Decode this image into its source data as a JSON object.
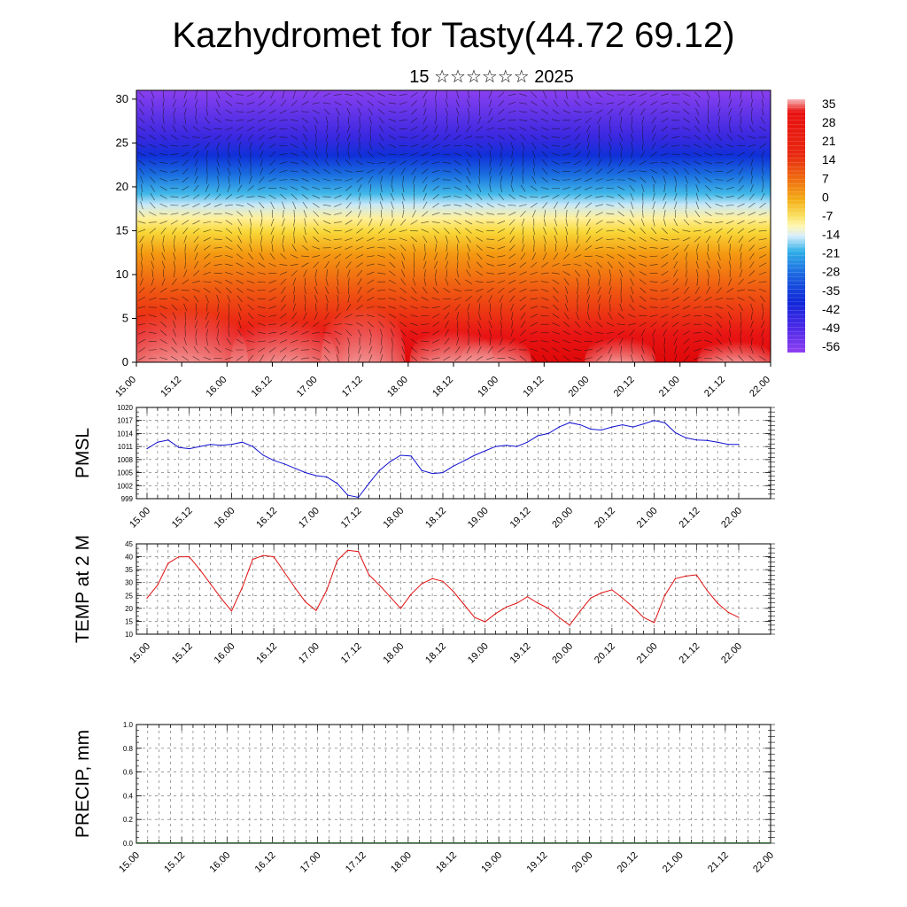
{
  "title": "Kazhydromet for Tasty(44.72 69.12)",
  "subtitle": "15 ☆☆☆☆☆☆ 2025",
  "chart_data": [
    {
      "type": "heatmap",
      "name": "cross-section",
      "title": "",
      "ylim": [
        0,
        31
      ],
      "yticks": [
        "0",
        "5",
        "10",
        "15",
        "20",
        "25",
        "30"
      ],
      "xticks": [
        "15.00",
        "15.12",
        "16.00",
        "16.12",
        "17.00",
        "17.12",
        "18.00",
        "18.12",
        "19.00",
        "19.12",
        "20.00",
        "20.12",
        "21.00",
        "21.12",
        "22.00"
      ],
      "colorbar_labels": [
        "35",
        "28",
        "21",
        "14",
        "7",
        "0",
        "-7",
        "-14",
        "-21",
        "-28",
        "-35",
        "-42",
        "-49",
        "-56"
      ],
      "colorbar_colors": [
        "#f7a8a8",
        "#e81414",
        "#e01a1a",
        "#f05a10",
        "#f4a010",
        "#f8e040",
        "#fff4a0",
        "#e0f0ff",
        "#30b0e8",
        "#2080e0",
        "#1040e0",
        "#3020e0",
        "#6030f0",
        "#9040f0"
      ],
      "grid": false
    },
    {
      "type": "line",
      "ylabel": "PMSL",
      "ylim": [
        999,
        1020
      ],
      "yticks": [
        "999",
        "1002",
        "1005",
        "1008",
        "1011",
        "1014",
        "1017",
        "1020"
      ],
      "xticks": [
        "15.00",
        "15.12",
        "16.00",
        "16.12",
        "17.00",
        "17.12",
        "18.00",
        "18.12",
        "19.00",
        "19.12",
        "20.00",
        "20.12",
        "21.00",
        "21.12",
        "22.00"
      ],
      "color": "#1010d0",
      "grid": true,
      "x": [
        0,
        3,
        6,
        9,
        12,
        15,
        18,
        21,
        24,
        27,
        30,
        33,
        36,
        39,
        42,
        45,
        48,
        51,
        54,
        57,
        60,
        63,
        66,
        69,
        72,
        75,
        78,
        81,
        84,
        87,
        90,
        93,
        96,
        99,
        102,
        105,
        108,
        111,
        114,
        117,
        120,
        123,
        126,
        129,
        132,
        135,
        138,
        141,
        144,
        147,
        150,
        153,
        156,
        159,
        162,
        165,
        168
      ],
      "values": [
        1010.5,
        1012,
        1012.5,
        1010.8,
        1010.5,
        1011,
        1011.5,
        1011.3,
        1011.5,
        1012,
        1011,
        1009,
        1007.8,
        1007,
        1006,
        1005,
        1004.3,
        1004,
        1002.5,
        999.8,
        999.3,
        1002.5,
        1005.5,
        1007.5,
        1009,
        1008.8,
        1005.5,
        1004.8,
        1005,
        1006.5,
        1007.7,
        1009,
        1010,
        1011,
        1011.3,
        1011,
        1012,
        1013.5,
        1014,
        1015.5,
        1016.5,
        1016,
        1015,
        1014.8,
        1015.5,
        1016,
        1015.5,
        1016.2,
        1017,
        1016.5,
        1014.2,
        1013,
        1012.5,
        1012.4,
        1012,
        1011.5,
        1011.5
      ]
    },
    {
      "type": "line",
      "ylabel": "TEMP at 2 M",
      "ylim": [
        10,
        45
      ],
      "yticks": [
        "10",
        "15",
        "20",
        "25",
        "30",
        "35",
        "40",
        "45"
      ],
      "xticks": [
        "15.00",
        "15.12",
        "16.00",
        "16.12",
        "17.00",
        "17.12",
        "18.00",
        "18.12",
        "19.00",
        "19.12",
        "20.00",
        "20.12",
        "21.00",
        "21.12",
        "22.00"
      ],
      "color": "#e01010",
      "grid": true,
      "x": [
        0,
        3,
        6,
        9,
        12,
        15,
        18,
        21,
        24,
        27,
        30,
        33,
        36,
        39,
        42,
        45,
        48,
        51,
        54,
        57,
        60,
        63,
        66,
        69,
        72,
        75,
        78,
        81,
        84,
        87,
        90,
        93,
        96,
        99,
        102,
        105,
        108,
        111,
        114,
        117,
        120,
        123,
        126,
        129,
        132,
        135,
        138,
        141,
        144,
        147,
        150,
        153,
        156,
        159,
        162,
        165,
        168
      ],
      "values": [
        24,
        29,
        37.5,
        40,
        40,
        35,
        29.5,
        24,
        19,
        28,
        39,
        40.5,
        40,
        34,
        28,
        22.5,
        19.2,
        27,
        38.5,
        42.5,
        42,
        33,
        29,
        24.5,
        20,
        25.5,
        29.5,
        31.5,
        30.5,
        26.5,
        21.5,
        16.5,
        14.8,
        18,
        20.5,
        22,
        24.5,
        22,
        20,
        16.5,
        13.5,
        19,
        24,
        26,
        27.2,
        24,
        20.5,
        16.5,
        14.5,
        25,
        31.5,
        32.5,
        33,
        27,
        22,
        18.5,
        16.5
      ]
    },
    {
      "type": "bar",
      "ylabel": "PRECIP, mm",
      "ylim": [
        0,
        1
      ],
      "yticks": [
        "0.0",
        "0.2",
        "0.4",
        "0.6",
        "0.8",
        "1.0"
      ],
      "xticks": [
        "15.00",
        "15.12",
        "16.00",
        "16.12",
        "17.00",
        "17.12",
        "18.00",
        "18.12",
        "19.00",
        "19.12",
        "20.00",
        "20.12",
        "21.00",
        "21.12",
        "22.00"
      ],
      "color": "#2a6a2a",
      "grid": true,
      "values": [
        0,
        0,
        0,
        0,
        0,
        0,
        0,
        0,
        0,
        0,
        0,
        0,
        0,
        0,
        0,
        0,
        0,
        0,
        0,
        0,
        0,
        0,
        0,
        0,
        0,
        0,
        0,
        0,
        0,
        0,
        0,
        0,
        0,
        0,
        0,
        0,
        0,
        0,
        0,
        0,
        0,
        0,
        0,
        0,
        0,
        0,
        0,
        0,
        0,
        0,
        0,
        0,
        0,
        0,
        0,
        0,
        0
      ]
    }
  ]
}
